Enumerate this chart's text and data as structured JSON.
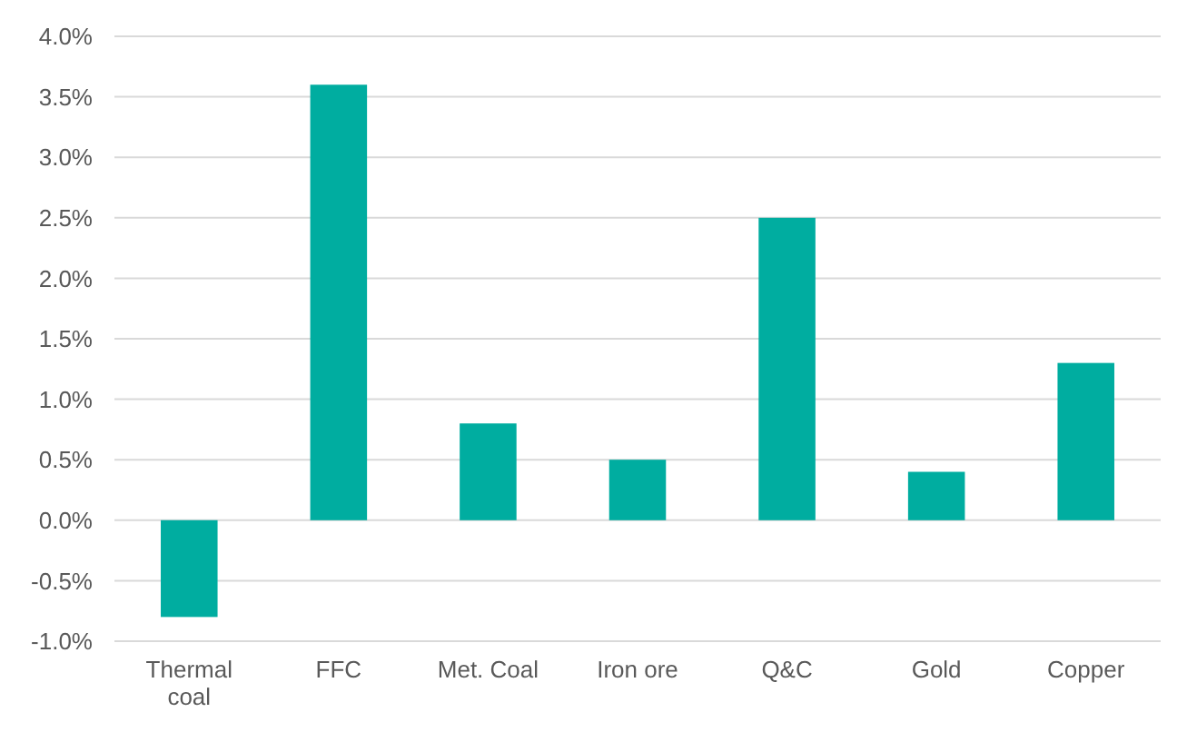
{
  "chart_data": {
    "type": "bar",
    "categories": [
      "Thermal coal",
      "FFC",
      "Met. Coal",
      "Iron ore",
      "Q&C",
      "Gold",
      "Copper"
    ],
    "values": [
      -0.8,
      3.6,
      0.8,
      0.5,
      2.5,
      0.4,
      1.3
    ],
    "color": "#00ada0",
    "ylim": [
      -1,
      4
    ],
    "yticks": [
      {
        "value": -1,
        "label": "-1.0%"
      },
      {
        "value": -0.5,
        "label": "-0.5%"
      },
      {
        "value": 0,
        "label": "0.0%"
      },
      {
        "value": 0.5,
        "label": "0.5%"
      },
      {
        "value": 1,
        "label": "1.0%"
      },
      {
        "value": 1.5,
        "label": "1.5%"
      },
      {
        "value": 2,
        "label": "2.0%"
      },
      {
        "value": 2.5,
        "label": "2.5%"
      },
      {
        "value": 3,
        "label": "3.0%"
      },
      {
        "value": 3.5,
        "label": "3.5%"
      },
      {
        "value": 4,
        "label": "4.0%"
      }
    ],
    "grid": "y"
  }
}
